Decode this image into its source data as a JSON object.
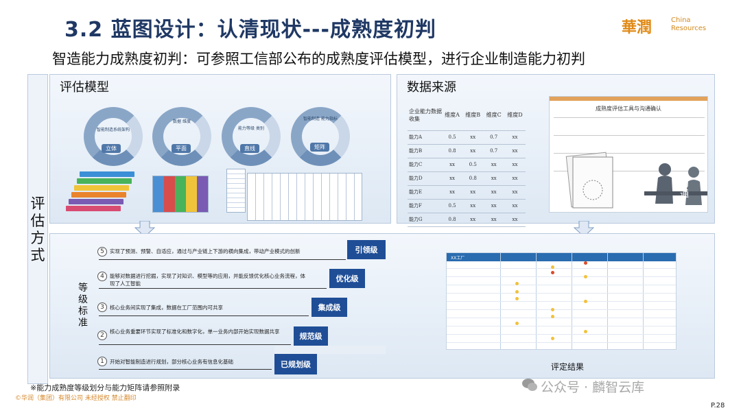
{
  "header": {
    "title": "3.2 蓝图设计：认清现状---成熟度初判",
    "subtitle": "智造能力成熟度初判：可参照工信部公布的成熟度评估模型，进行企业制造能力初判"
  },
  "logo": {
    "brand": "華潤",
    "en_line1": "China",
    "en_line2": "Resources"
  },
  "side_label": "评估方式",
  "eval_model": {
    "title": "评估模型",
    "rings": [
      {
        "caption": "智能制造系统架构",
        "label": "立体"
      },
      {
        "caption": "数据 维度",
        "label": "平面"
      },
      {
        "caption": "能力等级 类别",
        "label": "直线"
      },
      {
        "caption": "智能制造 能力指标",
        "label": "矩阵"
      }
    ]
  },
  "data_source": {
    "title": "数据来源",
    "table_header": [
      "企业能力数据收集",
      "维度A",
      "维度B",
      "维度C",
      "维度D"
    ],
    "rows": [
      [
        "能力A",
        "0.5",
        "xx",
        "0.7",
        "xx"
      ],
      [
        "能力B",
        "0.8",
        "xx",
        "0.7",
        "xx"
      ],
      [
        "能力C",
        "xx",
        "0.5",
        "xx",
        "xx"
      ],
      [
        "能力D",
        "xx",
        "0.8",
        "xx",
        "xx"
      ],
      [
        "能力E",
        "xx",
        "xx",
        "xx",
        "xx"
      ],
      [
        "能力F",
        "0.5",
        "xx",
        "xx",
        "xx"
      ],
      [
        "能力G",
        "0.8",
        "xx",
        "xx",
        "xx"
      ]
    ],
    "tool_title": "成熟度评估工具与沟通确认",
    "comm_tag": "沟通"
  },
  "levels": {
    "label": "等级标准",
    "items": [
      {
        "num": "5",
        "text": "实现了预测、预警、自适应，通过与产业链上下游的横向集成，带动产业模式的创新",
        "name": "引领级"
      },
      {
        "num": "4",
        "text": "能够对数据进行挖掘，实现了对知识、模型等的应用，并能反馈优化核心业务流程，体现了人工智能",
        "name": "优化级"
      },
      {
        "num": "3",
        "text": "核心业务间实现了集成，数据在工厂范围内可共享",
        "name": "集成级"
      },
      {
        "num": "2",
        "text": "核心业务重要环节实现了标准化和数字化，单一业务内部开始实现数据共享",
        "name": "规范级"
      },
      {
        "num": "1",
        "text": "开始对智能制造进行规划，部分核心业务有信息化基础",
        "name": "已规划级"
      }
    ]
  },
  "result": {
    "label": "评定结果",
    "corner": "XX工厂"
  },
  "footer": {
    "footnote": "※能力成熟度等级划分与能力矩阵请参照附录",
    "copyright": "©华润（集团）有限公司  未经授权 禁止翻印",
    "watermark": "公众号 · 麟智云库",
    "page": "P.28"
  }
}
